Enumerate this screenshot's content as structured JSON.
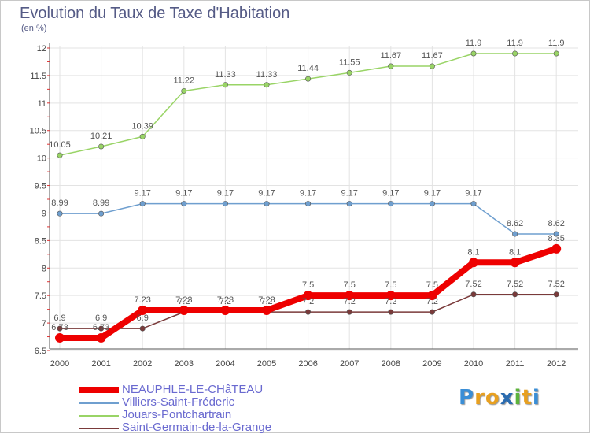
{
  "chart_data": {
    "type": "line",
    "title": "Evolution du Taux de Taxe d'Habitation",
    "subtitle": "(en %)",
    "x": [
      "2000",
      "2001",
      "2002",
      "2003",
      "2004",
      "2005",
      "2006",
      "2007",
      "2008",
      "2009",
      "2010",
      "2011",
      "2012"
    ],
    "ylim": [
      6.5,
      12
    ],
    "yticks": [
      "6.5",
      "7",
      "7.5",
      "8",
      "8.5",
      "9",
      "9.5",
      "10",
      "10.5",
      "11",
      "11.5",
      "12"
    ],
    "grid": true,
    "legend_position": "bottom-left",
    "series": [
      {
        "name": "NEAUPHLE-LE-CHâTEAU",
        "color": "#ee0000",
        "values": [
          6.73,
          6.73,
          7.23,
          7.23,
          7.23,
          7.23,
          7.5,
          7.5,
          7.5,
          7.5,
          8.1,
          8.1,
          8.35
        ],
        "labels": [
          "6.73",
          "6.73",
          "7.23",
          "7.23",
          "7.23",
          "7.23",
          "7.5",
          "7.5",
          "7.5",
          "7.5",
          "8.1",
          "8.1",
          "8.35"
        ]
      },
      {
        "name": "Villiers-Saint-Fréderic",
        "color": "#6f9fcf",
        "values": [
          8.99,
          8.99,
          9.17,
          9.17,
          9.17,
          9.17,
          9.17,
          9.17,
          9.17,
          9.17,
          9.17,
          8.62,
          8.62
        ],
        "labels": [
          "8.99",
          "8.99",
          "9.17",
          "9.17",
          "9.17",
          "9.17",
          "9.17",
          "9.17",
          "9.17",
          "9.17",
          "9.17",
          "8.62",
          "8.62"
        ]
      },
      {
        "name": "Jouars-Pontchartrain",
        "color": "#99d466",
        "values": [
          10.05,
          10.21,
          10.39,
          11.22,
          11.33,
          11.33,
          11.44,
          11.55,
          11.67,
          11.67,
          11.9,
          11.9,
          11.9
        ],
        "labels": [
          "10.05",
          "10.21",
          "10.39",
          "11.22",
          "11.33",
          "11.33",
          "11.44",
          "11.55",
          "11.67",
          "11.67",
          "11.9",
          "11.9",
          "11.9"
        ]
      },
      {
        "name": "Saint-Germain-de-la-Grange",
        "color": "#7a3a3a",
        "values": [
          6.9,
          6.9,
          6.9,
          7.2,
          7.2,
          7.2,
          7.2,
          7.2,
          7.2,
          7.2,
          7.52,
          7.52,
          7.52
        ],
        "labels": [
          "6.9",
          "6.9",
          "6.9",
          "7.2",
          "7.2",
          "7.2",
          "7.2",
          "7.2",
          "7.2",
          "7.2",
          "7.52",
          "7.52",
          "7.52"
        ]
      }
    ]
  },
  "brand": {
    "letters": [
      "P",
      "r",
      "o",
      "x",
      "i",
      "t",
      "i"
    ],
    "colors": [
      "#3a8ed6",
      "#e8a020",
      "#e8a020",
      "#2b6cb0",
      "#5db33b",
      "#e8a020",
      "#3a8ed6"
    ]
  }
}
